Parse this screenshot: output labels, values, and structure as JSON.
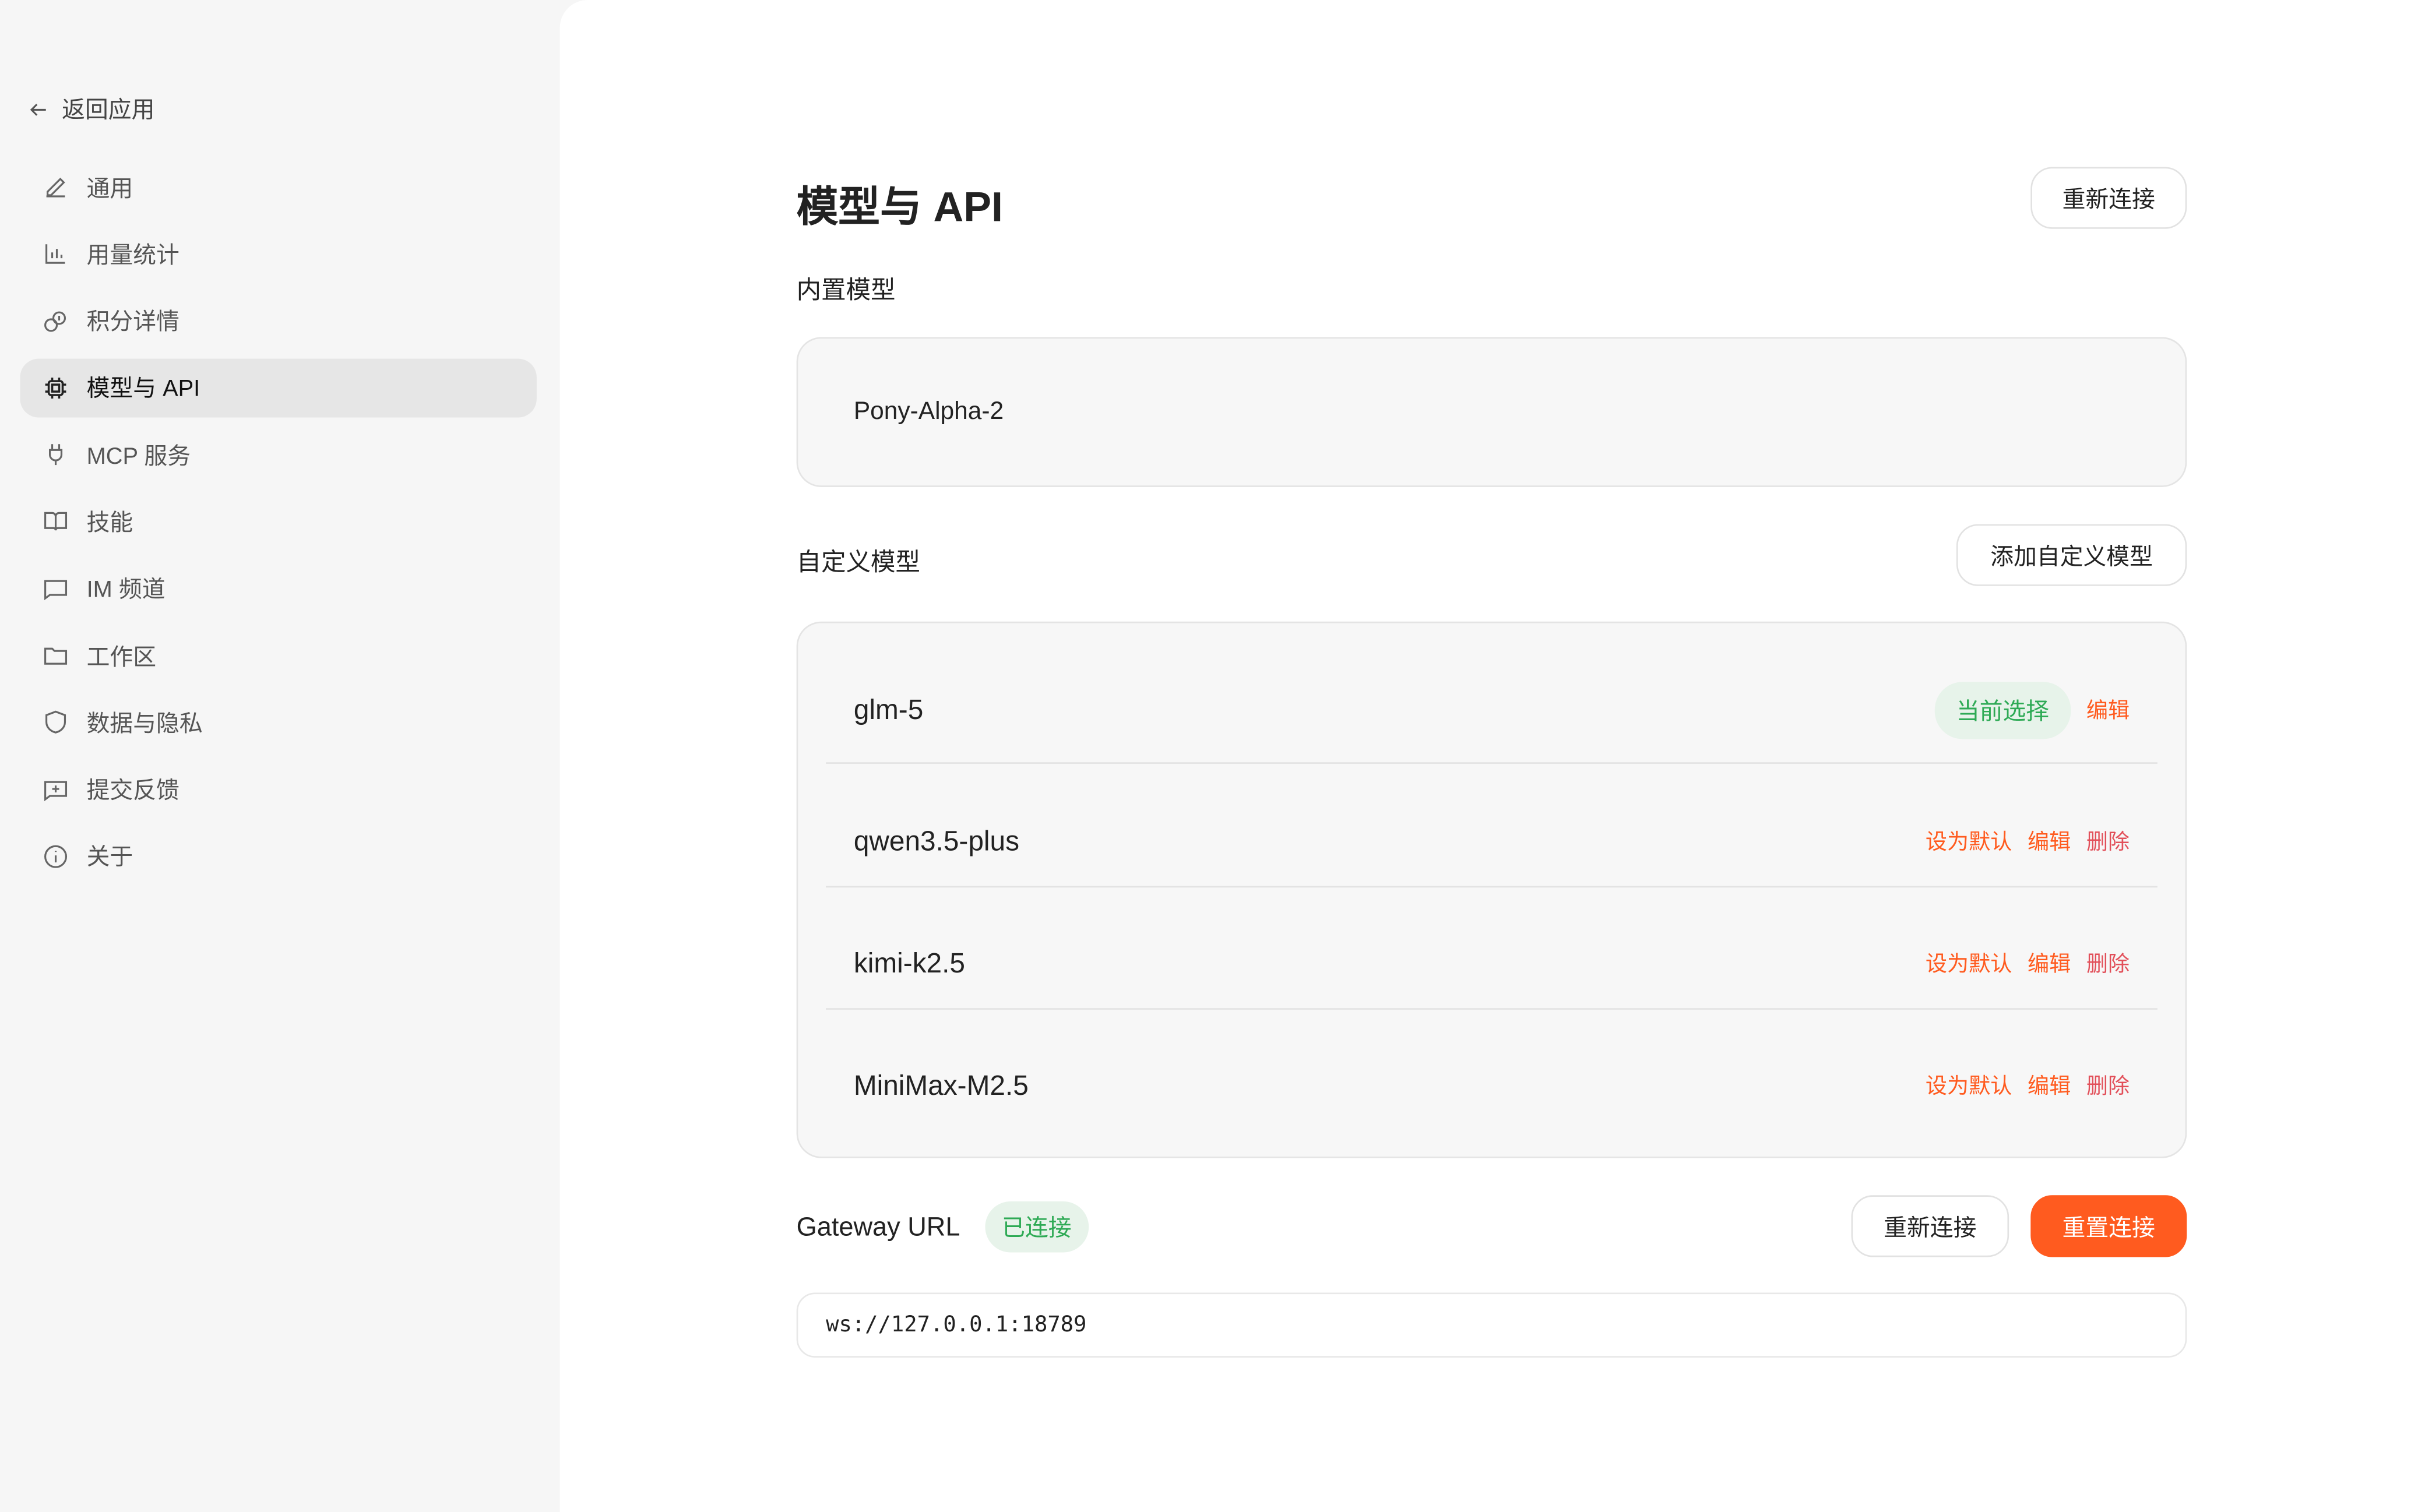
{
  "sidebar": {
    "back_label": "返回应用",
    "items": [
      {
        "label": "通用",
        "icon": "pencil-icon"
      },
      {
        "label": "用量统计",
        "icon": "bar-chart-icon"
      },
      {
        "label": "积分详情",
        "icon": "coins-icon"
      },
      {
        "label": "模型与 API",
        "icon": "chip-icon",
        "active": true
      },
      {
        "label": "MCP 服务",
        "icon": "plug-icon"
      },
      {
        "label": "技能",
        "icon": "book-icon"
      },
      {
        "label": "IM 频道",
        "icon": "message-icon"
      },
      {
        "label": "工作区",
        "icon": "folder-icon"
      },
      {
        "label": "数据与隐私",
        "icon": "shield-icon"
      },
      {
        "label": "提交反馈",
        "icon": "feedback-icon"
      },
      {
        "label": "关于",
        "icon": "info-icon"
      }
    ]
  },
  "main": {
    "title": "模型与 API",
    "reconnect_top": "重新连接",
    "builtin_heading": "内置模型",
    "builtin_model": "Pony-Alpha-2",
    "custom_heading": "自定义模型",
    "add_custom": "添加自定义模型",
    "custom_models": [
      {
        "name": "glm-5",
        "current": "当前选择",
        "edit": "编辑"
      },
      {
        "name": "qwen3.5-plus",
        "set_default": "设为默认",
        "edit": "编辑",
        "delete": "删除"
      },
      {
        "name": "kimi-k2.5",
        "set_default": "设为默认",
        "edit": "编辑",
        "delete": "删除"
      },
      {
        "name": "MiniMax-M2.5",
        "set_default": "设为默认",
        "edit": "编辑",
        "delete": "删除"
      }
    ],
    "gateway": {
      "label": "Gateway URL",
      "status": "已连接",
      "reconnect": "重新连接",
      "reset": "重置连接",
      "url": "ws://127.0.0.1:18789"
    }
  },
  "colors": {
    "accent": "#ff5b1f",
    "success": "#2eaa55",
    "danger": "#e2505a"
  }
}
